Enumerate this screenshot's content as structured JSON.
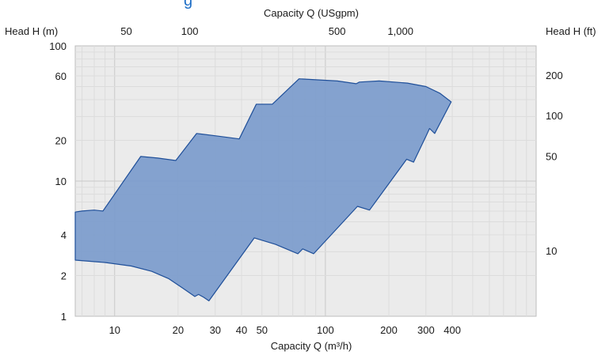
{
  "chart_data": {
    "type": "area",
    "title_fragment": "g",
    "top_axis_label": "Capacity Q (USgpm)",
    "bottom_axis_label": "Capacity Q (m³/h)",
    "left_axis_label": "Head H (m)",
    "right_axis_label": "Head H (ft)",
    "x_scale": "log",
    "y_scale": "log",
    "xlim": [
      6.5,
      1000
    ],
    "ylim": [
      1,
      100
    ],
    "grid": true,
    "bottom_ticks": [
      {
        "value": 10,
        "label": "10"
      },
      {
        "value": 20,
        "label": "20"
      },
      {
        "value": 30,
        "label": "30"
      },
      {
        "value": 40,
        "label": "40"
      },
      {
        "value": 50,
        "label": "50"
      },
      {
        "value": 100,
        "label": "100"
      },
      {
        "value": 200,
        "label": "200"
      },
      {
        "value": 300,
        "label": "300"
      },
      {
        "value": 400,
        "label": "400"
      }
    ],
    "top_ticks": [
      {
        "value": 50,
        "label": "50"
      },
      {
        "value": 100,
        "label": "100"
      },
      {
        "value": 500,
        "label": "500"
      },
      {
        "value": 1000,
        "label": "1,000"
      }
    ],
    "left_ticks": [
      {
        "value": 1,
        "label": "1"
      },
      {
        "value": 2,
        "label": "2"
      },
      {
        "value": 4,
        "label": "4"
      },
      {
        "value": 10,
        "label": "10"
      },
      {
        "value": 20,
        "label": "20"
      },
      {
        "value": 60,
        "label": "60"
      },
      {
        "value": 100,
        "label": "100"
      }
    ],
    "right_ticks": [
      {
        "value": 10,
        "label": "10"
      },
      {
        "value": 50,
        "label": "50"
      },
      {
        "value": 100,
        "label": "100"
      },
      {
        "value": 200,
        "label": "200"
      }
    ],
    "series": [
      {
        "fill_color": "#7b9bcc",
        "stroke_color": "#1f4f99",
        "polygon": [
          [
            6.5,
            2.6
          ],
          [
            9,
            2.5
          ],
          [
            12,
            2.35
          ],
          [
            15,
            2.15
          ],
          [
            18,
            1.9
          ],
          [
            21,
            1.62
          ],
          [
            24,
            1.4
          ],
          [
            25,
            1.45
          ],
          [
            26.5,
            1.38
          ],
          [
            28,
            1.3
          ],
          [
            46,
            3.8
          ],
          [
            58,
            3.4
          ],
          [
            74,
            2.9
          ],
          [
            78,
            3.15
          ],
          [
            88,
            2.9
          ],
          [
            142,
            6.5
          ],
          [
            162,
            6.1
          ],
          [
            243,
            14.5
          ],
          [
            262,
            13.8
          ],
          [
            300,
            21.5
          ],
          [
            312,
            24.5
          ],
          [
            330,
            22.5
          ],
          [
            395,
            38.5
          ],
          [
            350,
            44.5
          ],
          [
            300,
            50
          ],
          [
            245,
            53
          ],
          [
            180,
            55
          ],
          [
            145,
            54
          ],
          [
            140,
            52.5
          ],
          [
            114,
            55
          ],
          [
            75,
            57
          ],
          [
            56,
            37
          ],
          [
            47,
            37
          ],
          [
            39,
            20.5
          ],
          [
            31,
            21.5
          ],
          [
            24.5,
            22.5
          ],
          [
            19.5,
            14.2
          ],
          [
            16,
            14.8
          ],
          [
            13.3,
            15.2
          ],
          [
            8.8,
            6.0
          ],
          [
            8,
            6.1
          ],
          [
            7,
            6.0
          ],
          [
            6.5,
            5.9
          ]
        ]
      }
    ]
  }
}
